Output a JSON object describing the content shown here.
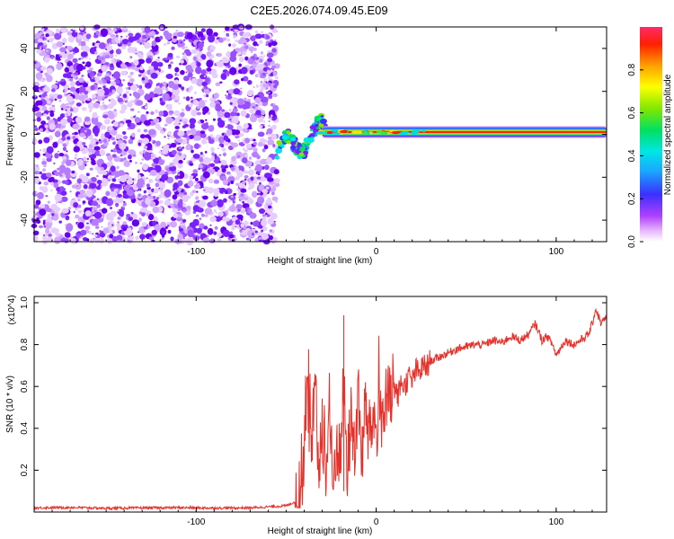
{
  "title": "C2E5.2026.074.09.45.E09",
  "chart_data": [
    {
      "type": "heatmap",
      "xlabel": "Height of straight line (km)",
      "ylabel": "Frequency (Hz)",
      "xlim": [
        -190,
        128
      ],
      "ylim": [
        -50,
        50
      ],
      "xticks": [
        -100,
        0,
        100
      ],
      "xtick_labels": [
        "-100",
        "0",
        "100"
      ],
      "yticks": [
        -40,
        -20,
        0,
        20,
        40
      ],
      "ytick_labels": [
        "-40",
        "-20",
        "0",
        "20",
        "40"
      ],
      "colorbar": {
        "label": "Normalized spectral amplitude",
        "range": [
          0.0,
          1.0
        ],
        "ticks": [
          0.0,
          0.2,
          0.4,
          0.6,
          0.8
        ],
        "tick_labels": [
          "0.0",
          "0.2",
          "0.4",
          "0.6",
          "0.8"
        ],
        "colormap": "rainbow (magenta-blue-cyan-green-yellow-red)"
      },
      "features": [
        {
          "region": "noise",
          "x_range": [
            -190,
            -55
          ],
          "y_range": [
            -50,
            50
          ],
          "amplitude": "low, scattered purple speckle"
        },
        {
          "region": "ionospheric trace onset",
          "x_range": [
            -55,
            -30
          ],
          "y_range": [
            -12,
            8
          ],
          "amplitude": "medium, wavy"
        },
        {
          "region": "coherent carrier line",
          "x_range": [
            -30,
            128
          ],
          "y_center": 1,
          "amplitude": "high (red core)"
        }
      ]
    },
    {
      "type": "line",
      "xlabel": "Height of straight line (km)",
      "ylabel": "SNR (10 * v/v)",
      "y_multiplier": "(x10^4)",
      "xlim": [
        -190,
        128
      ],
      "ylim": [
        0,
        1.03
      ],
      "xticks": [
        -100,
        0,
        100
      ],
      "xtick_labels": [
        "-100",
        "0",
        "100"
      ],
      "yticks": [
        0.2,
        0.4,
        0.6,
        0.8,
        1.0
      ],
      "ytick_labels": [
        "0.2",
        "0.4",
        "0.6",
        "0.8",
        "1.0"
      ],
      "series_color": "#e8302a",
      "x": [
        -190,
        -170,
        -150,
        -130,
        -110,
        -90,
        -70,
        -50,
        -45,
        -42,
        -40,
        -38,
        -36,
        -34,
        -32,
        -30,
        -28,
        -26,
        -24,
        -22,
        -20,
        -18,
        -16,
        -14,
        -12,
        -10,
        -8,
        -6,
        -4,
        -2,
        0,
        2,
        4,
        6,
        8,
        10,
        12,
        14,
        16,
        18,
        20,
        22,
        24,
        26,
        28,
        30,
        35,
        40,
        45,
        50,
        55,
        60,
        65,
        70,
        75,
        80,
        85,
        88,
        90,
        92,
        95,
        98,
        100,
        105,
        110,
        115,
        118,
        120,
        122,
        125,
        128
      ],
      "y": [
        0.02,
        0.022,
        0.018,
        0.02,
        0.021,
        0.019,
        0.02,
        0.03,
        0.05,
        0.1,
        0.3,
        0.55,
        0.25,
        0.6,
        0.2,
        0.45,
        0.15,
        0.5,
        0.1,
        0.35,
        0.25,
        0.6,
        0.2,
        0.45,
        0.3,
        0.55,
        0.25,
        0.5,
        0.35,
        0.45,
        0.4,
        0.5,
        0.45,
        0.55,
        0.5,
        0.6,
        0.55,
        0.62,
        0.6,
        0.65,
        0.62,
        0.68,
        0.66,
        0.7,
        0.69,
        0.72,
        0.74,
        0.76,
        0.78,
        0.79,
        0.8,
        0.8,
        0.82,
        0.81,
        0.84,
        0.82,
        0.85,
        0.9,
        0.87,
        0.82,
        0.84,
        0.8,
        0.75,
        0.82,
        0.8,
        0.83,
        0.85,
        0.9,
        0.97,
        0.9,
        0.93
      ]
    }
  ]
}
